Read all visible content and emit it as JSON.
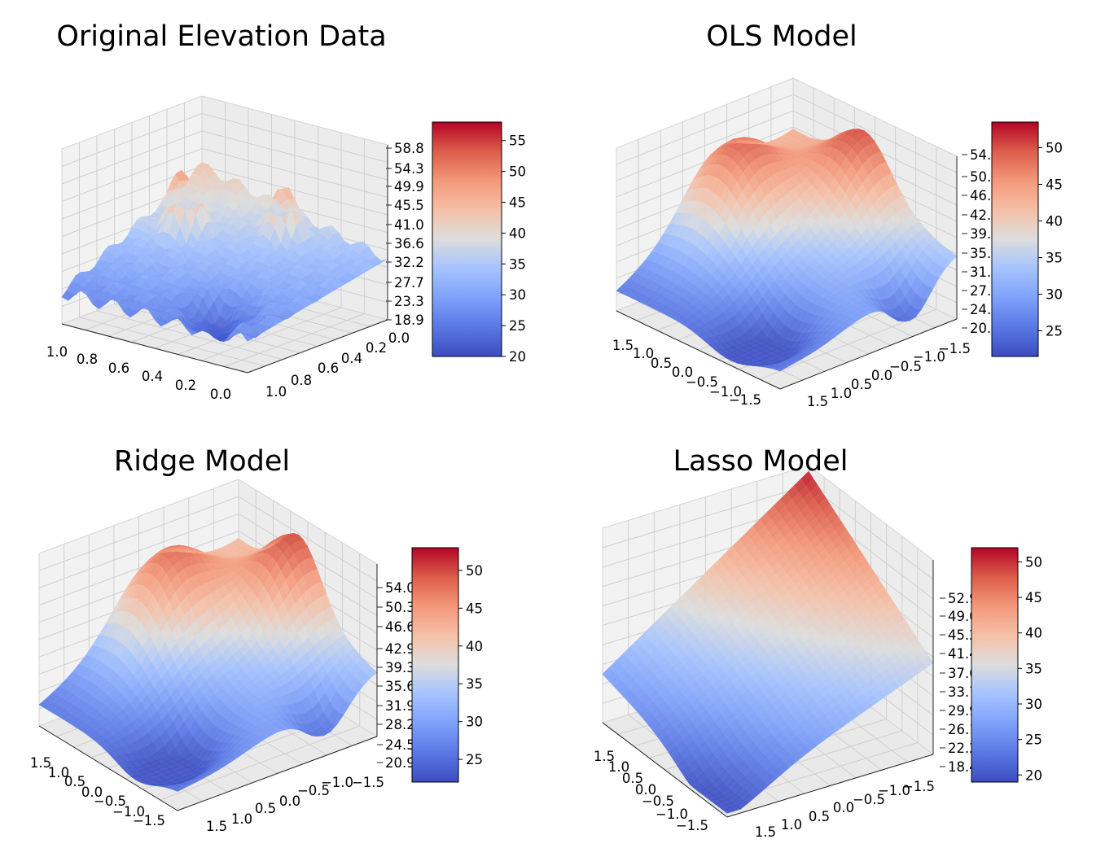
{
  "chart_data": [
    {
      "type": "surface",
      "title": "Original Elevation Data",
      "x_ticks": [
        "1.0",
        "0.8",
        "0.6",
        "0.4",
        "0.2",
        "0.0"
      ],
      "y_ticks": [
        "1.0",
        "0.8",
        "0.6",
        "0.4",
        "0.2",
        "0.0"
      ],
      "z_ticks": [
        "58.8",
        "54.3",
        "49.9",
        "45.5",
        "41.0",
        "36.6",
        "32.2",
        "27.7",
        "23.3",
        "18.9"
      ],
      "zlim": [
        18.9,
        58.8
      ],
      "colormap": "coolwarm",
      "colorbar_ticks": [
        "55",
        "50",
        "45",
        "40",
        "35",
        "30",
        "25",
        "20"
      ],
      "colorbar_range": [
        20,
        58
      ]
    },
    {
      "type": "surface",
      "title": "OLS Model",
      "x_ticks": [
        "1.5",
        "1.0",
        "0.5",
        "0.0",
        "−0.5",
        "−1.0",
        "−1.5"
      ],
      "y_ticks": [
        "1.5",
        "1.0",
        "0.5",
        "0.0",
        "−0.5",
        "−1.0",
        "−1.5"
      ],
      "z_ticks": [
        "54.1",
        "50.4",
        "46.7",
        "42.9",
        "39.2",
        "35.4",
        "31.7",
        "27.9",
        "24.2",
        "20.4"
      ],
      "zlim": [
        20.4,
        54.1
      ],
      "colormap": "coolwarm",
      "colorbar_ticks": [
        "50",
        "45",
        "40",
        "35",
        "30",
        "25"
      ],
      "colorbar_range": [
        21.5,
        53.5
      ]
    },
    {
      "type": "surface",
      "title": "Ridge Model",
      "x_ticks": [
        "1.5",
        "1.0",
        "0.5",
        "0.0",
        "−0.5",
        "−1.0",
        "−1.5"
      ],
      "y_ticks": [
        "1.5",
        "1.0",
        "0.5",
        "0.0",
        "−0.5",
        "−1.0",
        "−1.5"
      ],
      "z_ticks": [
        "54.0",
        "50.3",
        "46.6",
        "42.9",
        "39.3",
        "35.6",
        "31.9",
        "28.2",
        "24.5",
        "20.9"
      ],
      "zlim": [
        20.9,
        54.0
      ],
      "colormap": "coolwarm",
      "colorbar_ticks": [
        "50",
        "45",
        "40",
        "35",
        "30",
        "25"
      ],
      "colorbar_range": [
        22,
        53
      ]
    },
    {
      "type": "surface",
      "title": "Lasso Model",
      "x_ticks": [
        "1.5",
        "1.0",
        "0.5",
        "0.0",
        "−0.5",
        "−1.0",
        "−1.5"
      ],
      "y_ticks": [
        "1.5",
        "1.0",
        "0.5",
        "0.0",
        "−0.5",
        "−1.0",
        "−1.5"
      ],
      "z_ticks": [
        "52.9",
        "49.0",
        "45.2",
        "41.4",
        "37.6",
        "33.7",
        "29.9",
        "26.1",
        "22.2",
        "18.4"
      ],
      "zlim": [
        18.4,
        52.9
      ],
      "colormap": "coolwarm",
      "colorbar_ticks": [
        "50",
        "45",
        "40",
        "35",
        "30",
        "25",
        "20"
      ],
      "colorbar_range": [
        19,
        52
      ]
    }
  ]
}
